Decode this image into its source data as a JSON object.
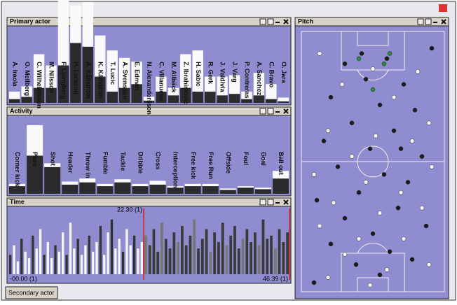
{
  "panels": {
    "primary_actor": {
      "title": "Primary actor",
      "labels": [
        "A. Iraola",
        "O. Mellberg",
        "C. Wilhelmsson",
        "M. Nilsson",
        "F. Ljungberg",
        "H. Larsson",
        "A. Källström",
        "K. Källström",
        "T. Lucic",
        "A. Svensson",
        "E. Edman",
        "N. Alexandersson",
        "C. Villanueva",
        "M. Allbäck",
        "Z. Ibrahimovic",
        "H. Sabic",
        "R. Gerk",
        "J. Valdivia",
        "J. Varg",
        "P. Contreras",
        "A. Sanchez",
        "C. Bravo",
        "O. Jara"
      ],
      "dark": [
        5,
        8,
        20,
        20,
        50,
        80,
        75,
        35,
        15,
        20,
        25,
        3,
        15,
        10,
        20,
        15,
        15,
        10,
        12,
        5,
        10,
        5,
        2
      ],
      "light": [
        10,
        14,
        45,
        30,
        95,
        50,
        60,
        55,
        55,
        40,
        30,
        5,
        20,
        10,
        45,
        55,
        20,
        25,
        25,
        10,
        30,
        20,
        5
      ]
    },
    "activity": {
      "title": "Activity",
      "labels": [
        "Corner kick",
        "Pass",
        "Shot",
        "Header",
        "Throw in",
        "Fumble",
        "Tackle",
        "Dribble",
        "Cross",
        "Interception",
        "Free kick",
        "Free Run",
        "Offside",
        "Foul",
        "Goal",
        "Ball out"
      ],
      "dark": [
        10,
        50,
        35,
        12,
        15,
        10,
        15,
        10,
        12,
        8,
        10,
        10,
        5,
        8,
        6,
        20
      ],
      "light": [
        3,
        40,
        5,
        4,
        5,
        3,
        4,
        3,
        5,
        2,
        3,
        3,
        2,
        2,
        2,
        10
      ]
    },
    "time": {
      "title": "Time",
      "marker_label": "22.30 (1)",
      "start_label": "-00.00 (1)",
      "end_label": "46.39 (1)",
      "first_half": [
        30,
        45,
        20,
        55,
        35,
        25,
        60,
        40,
        70,
        30,
        50,
        25,
        45,
        35,
        65,
        30,
        80,
        40,
        55,
        30,
        45,
        60,
        35,
        50,
        75,
        30,
        65,
        85,
        40,
        55,
        35,
        70,
        45,
        60,
        40,
        50
      ],
      "second_half": [
        60,
        45,
        70,
        35,
        80,
        55,
        40,
        65,
        50,
        75,
        45,
        60,
        85,
        40,
        55,
        70,
        35,
        65,
        50,
        80,
        45,
        60,
        75,
        40,
        55,
        70,
        50,
        65,
        45,
        85,
        55,
        60,
        40,
        70,
        50,
        65
      ]
    },
    "secondary_actor": {
      "title": "Secondary actor"
    },
    "pitch": {
      "title": "Pitch",
      "dark_points": [
        {
          "x": 30,
          "y": 12
        },
        {
          "x": 45,
          "y": 18
        },
        {
          "x": 60,
          "y": 10
        },
        {
          "x": 72,
          "y": 20
        },
        {
          "x": 20,
          "y": 25
        },
        {
          "x": 55,
          "y": 28
        },
        {
          "x": 80,
          "y": 30
        },
        {
          "x": 35,
          "y": 35
        },
        {
          "x": 65,
          "y": 38
        },
        {
          "x": 15,
          "y": 42
        },
        {
          "x": 48,
          "y": 45
        },
        {
          "x": 85,
          "y": 48
        },
        {
          "x": 25,
          "y": 52
        },
        {
          "x": 58,
          "y": 55
        },
        {
          "x": 75,
          "y": 58
        },
        {
          "x": 40,
          "y": 62
        },
        {
          "x": 10,
          "y": 65
        },
        {
          "x": 68,
          "y": 68
        },
        {
          "x": 30,
          "y": 72
        },
        {
          "x": 88,
          "y": 75
        },
        {
          "x": 50,
          "y": 78
        },
        {
          "x": 20,
          "y": 82
        },
        {
          "x": 62,
          "y": 85
        },
        {
          "x": 78,
          "y": 88
        },
        {
          "x": 38,
          "y": 90
        },
        {
          "x": 55,
          "y": 94
        },
        {
          "x": 8,
          "y": 97
        },
        {
          "x": 92,
          "y": 6
        },
        {
          "x": 42,
          "y": 8
        },
        {
          "x": 70,
          "y": 45
        }
      ],
      "white_points": [
        {
          "x": 12,
          "y": 8
        },
        {
          "x": 50,
          "y": 14
        },
        {
          "x": 82,
          "y": 15
        },
        {
          "x": 28,
          "y": 20
        },
        {
          "x": 65,
          "y": 25
        },
        {
          "x": 90,
          "y": 35
        },
        {
          "x": 18,
          "y": 38
        },
        {
          "x": 52,
          "y": 40
        },
        {
          "x": 78,
          "y": 42
        },
        {
          "x": 35,
          "y": 48
        },
        {
          "x": 92,
          "y": 52
        },
        {
          "x": 8,
          "y": 55
        },
        {
          "x": 45,
          "y": 58
        },
        {
          "x": 70,
          "y": 62
        },
        {
          "x": 22,
          "y": 66
        },
        {
          "x": 85,
          "y": 68
        },
        {
          "x": 55,
          "y": 70
        },
        {
          "x": 12,
          "y": 75
        },
        {
          "x": 40,
          "y": 80
        },
        {
          "x": 72,
          "y": 80
        },
        {
          "x": 30,
          "y": 86
        },
        {
          "x": 90,
          "y": 90
        },
        {
          "x": 60,
          "y": 92
        },
        {
          "x": 18,
          "y": 95
        },
        {
          "x": 48,
          "y": 98
        }
      ],
      "green_points": [
        {
          "x": 40,
          "y": 10
        },
        {
          "x": 58,
          "y": 12
        },
        {
          "x": 62,
          "y": 8
        },
        {
          "x": 50,
          "y": 22
        }
      ]
    }
  }
}
